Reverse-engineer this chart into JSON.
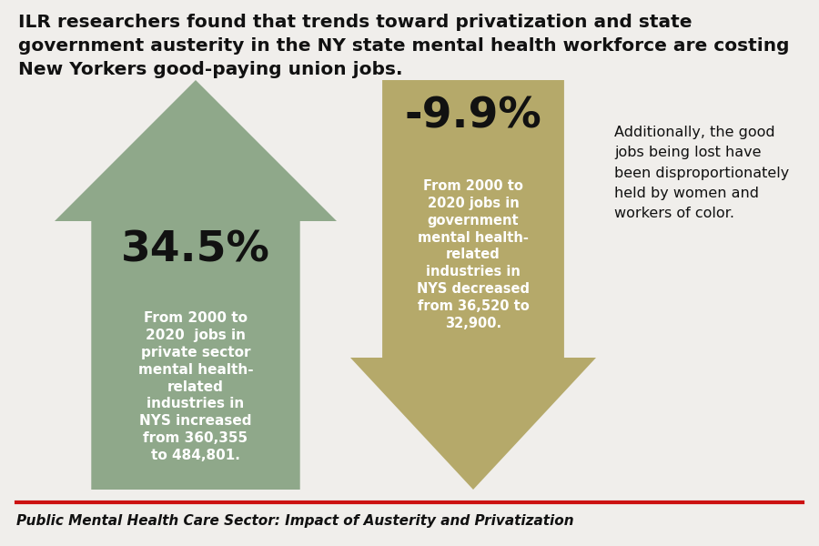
{
  "bg_color": "#f0eeeb",
  "title_text": "ILR researchers found that trends toward privatization and state\ngovernment austerity in the NY state mental health workforce are costing\nNew Yorkers good-paying union jobs.",
  "title_fontsize": 14.5,
  "title_color": "#111111",
  "arrow1_color": "#8fa88a",
  "arrow1_pct": "34.5%",
  "arrow1_pct_color": "#111111",
  "arrow1_body_text": "From 2000 to\n2020  jobs in\nprivate sector\nmental health-\nrelated\nindustries in\nNYS increased\nfrom 360,355\nto 484,801.",
  "arrow1_body_color": "#ffffff",
  "arrow2_color": "#b5a96a",
  "arrow2_pct": "-9.9%",
  "arrow2_pct_color": "#111111",
  "arrow2_body_text": "From 2000 to\n2020 jobs in\ngovernment\nmental health-\nrelated\nindustries in\nNYS decreased\nfrom 36,520 to\n32,900.",
  "arrow2_body_color": "#ffffff",
  "side_text": "Additionally, the good\njobs being lost have\nbeen disproportionately\nheld by women and\nworkers of color.",
  "side_text_color": "#111111",
  "footer_line_color": "#cc1111",
  "footer_text": "Public Mental Health Care Sector: Impact of Austerity and Privatization",
  "footer_text_color": "#111111"
}
